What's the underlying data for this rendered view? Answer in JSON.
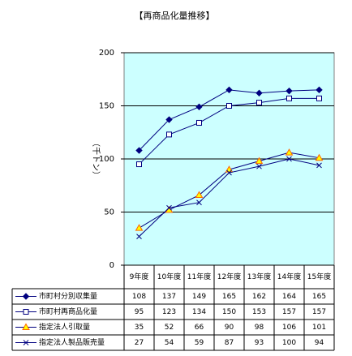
{
  "chart_data": {
    "type": "line",
    "title": "【再商品化量推移】",
    "y_label": "（千トン）",
    "categories": [
      "9年度",
      "10年度",
      "11年度",
      "12年度",
      "13年度",
      "14年度",
      "15年度"
    ],
    "series": [
      {
        "name": "市町村分別収集量",
        "color": "#000080",
        "marker": "diamond",
        "marker_fill": "#000080",
        "values": [
          108,
          137,
          149,
          165,
          162,
          164,
          165
        ]
      },
      {
        "name": "市町村再商品化量",
        "color": "#000080",
        "marker": "square",
        "marker_fill": "#ffffff",
        "values": [
          95,
          123,
          134,
          150,
          153,
          157,
          157
        ]
      },
      {
        "name": "指定法人引取量",
        "color": "#000080",
        "marker": "triangle",
        "marker_fill": "#ffff00",
        "values": [
          35,
          52,
          66,
          90,
          98,
          106,
          101
        ]
      },
      {
        "name": "指定法人製品販売量",
        "color": "#000080",
        "marker": "cross",
        "marker_fill": "#000080",
        "values": [
          27,
          54,
          59,
          87,
          93,
          100,
          94
        ]
      }
    ],
    "ylim": [
      0,
      200
    ],
    "yticks": [
      0,
      50,
      100,
      150,
      200
    ],
    "grid": true,
    "plot_background": "#ccffff"
  }
}
